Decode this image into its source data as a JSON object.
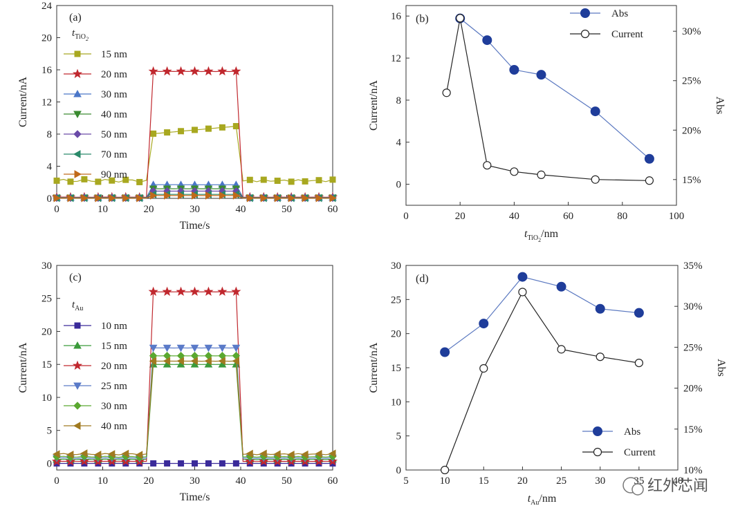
{
  "chart_data": [
    {
      "type": "line",
      "panel": "(a)",
      "xlabel": "Time/s",
      "ylabel": "Current/nA",
      "xlim": [
        0,
        60
      ],
      "ylim": [
        0,
        24
      ],
      "xticks": [
        "0",
        "10",
        "20",
        "30",
        "40",
        "50",
        "60"
      ],
      "yticks": [
        "0",
        "4",
        "8",
        "12",
        "16",
        "20",
        "24"
      ],
      "legend_title": "TiO2",
      "series": [
        {
          "name": "15 nm",
          "color": "#a8a820",
          "marker": "square",
          "off": 2.2,
          "on": 8.6
        },
        {
          "name": "20 nm",
          "color": "#c0282e",
          "marker": "star",
          "off": 0.15,
          "on": 15.8
        },
        {
          "name": "30 nm",
          "color": "#4a76c8",
          "marker": "triangle-up",
          "off": 0.1,
          "on": 1.7
        },
        {
          "name": "40 nm",
          "color": "#3a8a30",
          "marker": "triangle-down",
          "off": 0.08,
          "on": 1.2
        },
        {
          "name": "50 nm",
          "color": "#6a4aa8",
          "marker": "diamond",
          "off": 0.05,
          "on": 0.9
        },
        {
          "name": "70 nm",
          "color": "#2a8a6a",
          "marker": "triangle-left",
          "off": 0.04,
          "on": 0.5
        },
        {
          "name": "90 nm",
          "color": "#c06a1a",
          "marker": "triangle-right",
          "off": 0.03,
          "on": 0.35
        }
      ]
    },
    {
      "type": "line",
      "panel": "(b)",
      "xlabel": "TiO2/nm",
      "ylabel": "Current/nA",
      "ylabel2": "Abs",
      "xlim": [
        0,
        100
      ],
      "ylim": [
        -2,
        17
      ],
      "y2lim": [
        12.4,
        32.6
      ],
      "xticks": [
        "0",
        "20",
        "40",
        "60",
        "80",
        "100"
      ],
      "yticks": [
        "0",
        "4",
        "8",
        "12",
        "16"
      ],
      "y2ticks": [
        "15%",
        "20%",
        "25%",
        "30%"
      ],
      "series": [
        {
          "name": "Abs",
          "axis": "right",
          "x": [
            20,
            30,
            40,
            50,
            70,
            90
          ],
          "y": [
            31.3,
            29.1,
            26.1,
            25.6,
            21.9,
            17.1
          ]
        },
        {
          "name": "Current",
          "axis": "left",
          "x": [
            15,
            20,
            30,
            40,
            50,
            70,
            90
          ],
          "y": [
            8.7,
            15.8,
            1.8,
            1.2,
            0.9,
            0.45,
            0.35
          ]
        }
      ]
    },
    {
      "type": "line",
      "panel": "(c)",
      "xlabel": "Time/s",
      "ylabel": "Current/nA",
      "xlim": [
        0,
        60
      ],
      "ylim": [
        -1,
        30
      ],
      "xticks": [
        "0",
        "10",
        "20",
        "30",
        "40",
        "50",
        "60"
      ],
      "yticks": [
        "0",
        "5",
        "10",
        "15",
        "20",
        "25",
        "30"
      ],
      "legend_title": "Au",
      "series": [
        {
          "name": "10 nm",
          "color": "#3a2a9a",
          "marker": "square",
          "off": 0.0,
          "on": 0.0
        },
        {
          "name": "15 nm",
          "color": "#3a9a3a",
          "marker": "triangle-up",
          "off": 0.6,
          "on": 15.0
        },
        {
          "name": "20 nm",
          "color": "#c0282e",
          "marker": "star",
          "off": 0.3,
          "on": 26.0
        },
        {
          "name": "25 nm",
          "color": "#5a7ac8",
          "marker": "triangle-down",
          "off": 0.8,
          "on": 17.5
        },
        {
          "name": "30 nm",
          "color": "#5aa830",
          "marker": "diamond",
          "off": 1.0,
          "on": 16.3
        },
        {
          "name": "40 nm",
          "color": "#a07a20",
          "marker": "triangle-left",
          "off": 1.4,
          "on": 15.5
        }
      ]
    },
    {
      "type": "line",
      "panel": "(d)",
      "xlabel": "Au/nm",
      "ylabel": "Current/nA",
      "ylabel2": "Abs",
      "xlim": [
        5,
        40
      ],
      "ylim": [
        0,
        30
      ],
      "y2lim": [
        10,
        35
      ],
      "xticks": [
        "5",
        "10",
        "15",
        "20",
        "25",
        "30",
        "35",
        "40"
      ],
      "yticks": [
        "0",
        "5",
        "10",
        "15",
        "20",
        "25",
        "30"
      ],
      "y2ticks": [
        "10%",
        "15%",
        "20%",
        "25%",
        "30%",
        "35%"
      ],
      "series": [
        {
          "name": "Abs",
          "axis": "right",
          "x": [
            10,
            15,
            20,
            25,
            30,
            35
          ],
          "y": [
            24.4,
            27.9,
            33.6,
            32.4,
            29.7,
            29.2
          ]
        },
        {
          "name": "Current",
          "axis": "left",
          "x": [
            10,
            15,
            20,
            25,
            30,
            35
          ],
          "y": [
            0.0,
            14.9,
            26.1,
            17.7,
            16.6,
            15.7
          ]
        }
      ]
    }
  ],
  "labels": {
    "a": {
      "panel": "(a)",
      "xlabel": "Time/s",
      "ylabel": "Current/nA",
      "t": "t",
      "sub": "TiO",
      "sub2": "2"
    },
    "b": {
      "panel": "(b)",
      "xlabel_t": "t",
      "xlabel_sub": "TiO",
      "xlabel_sub2": "2",
      "xlabel_rest": "/nm",
      "ylabel": "Current/nA",
      "ylabel2": "Abs",
      "leg_abs": "Abs",
      "leg_cur": "Current"
    },
    "c": {
      "panel": "(c)",
      "xlabel": "Time/s",
      "ylabel": "Current/nA",
      "t": "t",
      "sub": "Au"
    },
    "d": {
      "panel": "(d)",
      "xlabel_t": "t",
      "xlabel_sub": "Au",
      "xlabel_rest": "/nm",
      "ylabel": "Current/nA",
      "ylabel2": "Abs",
      "leg_abs": "Abs",
      "leg_cur": "Current"
    }
  },
  "watermark": {
    "text": "红外芯闻"
  }
}
